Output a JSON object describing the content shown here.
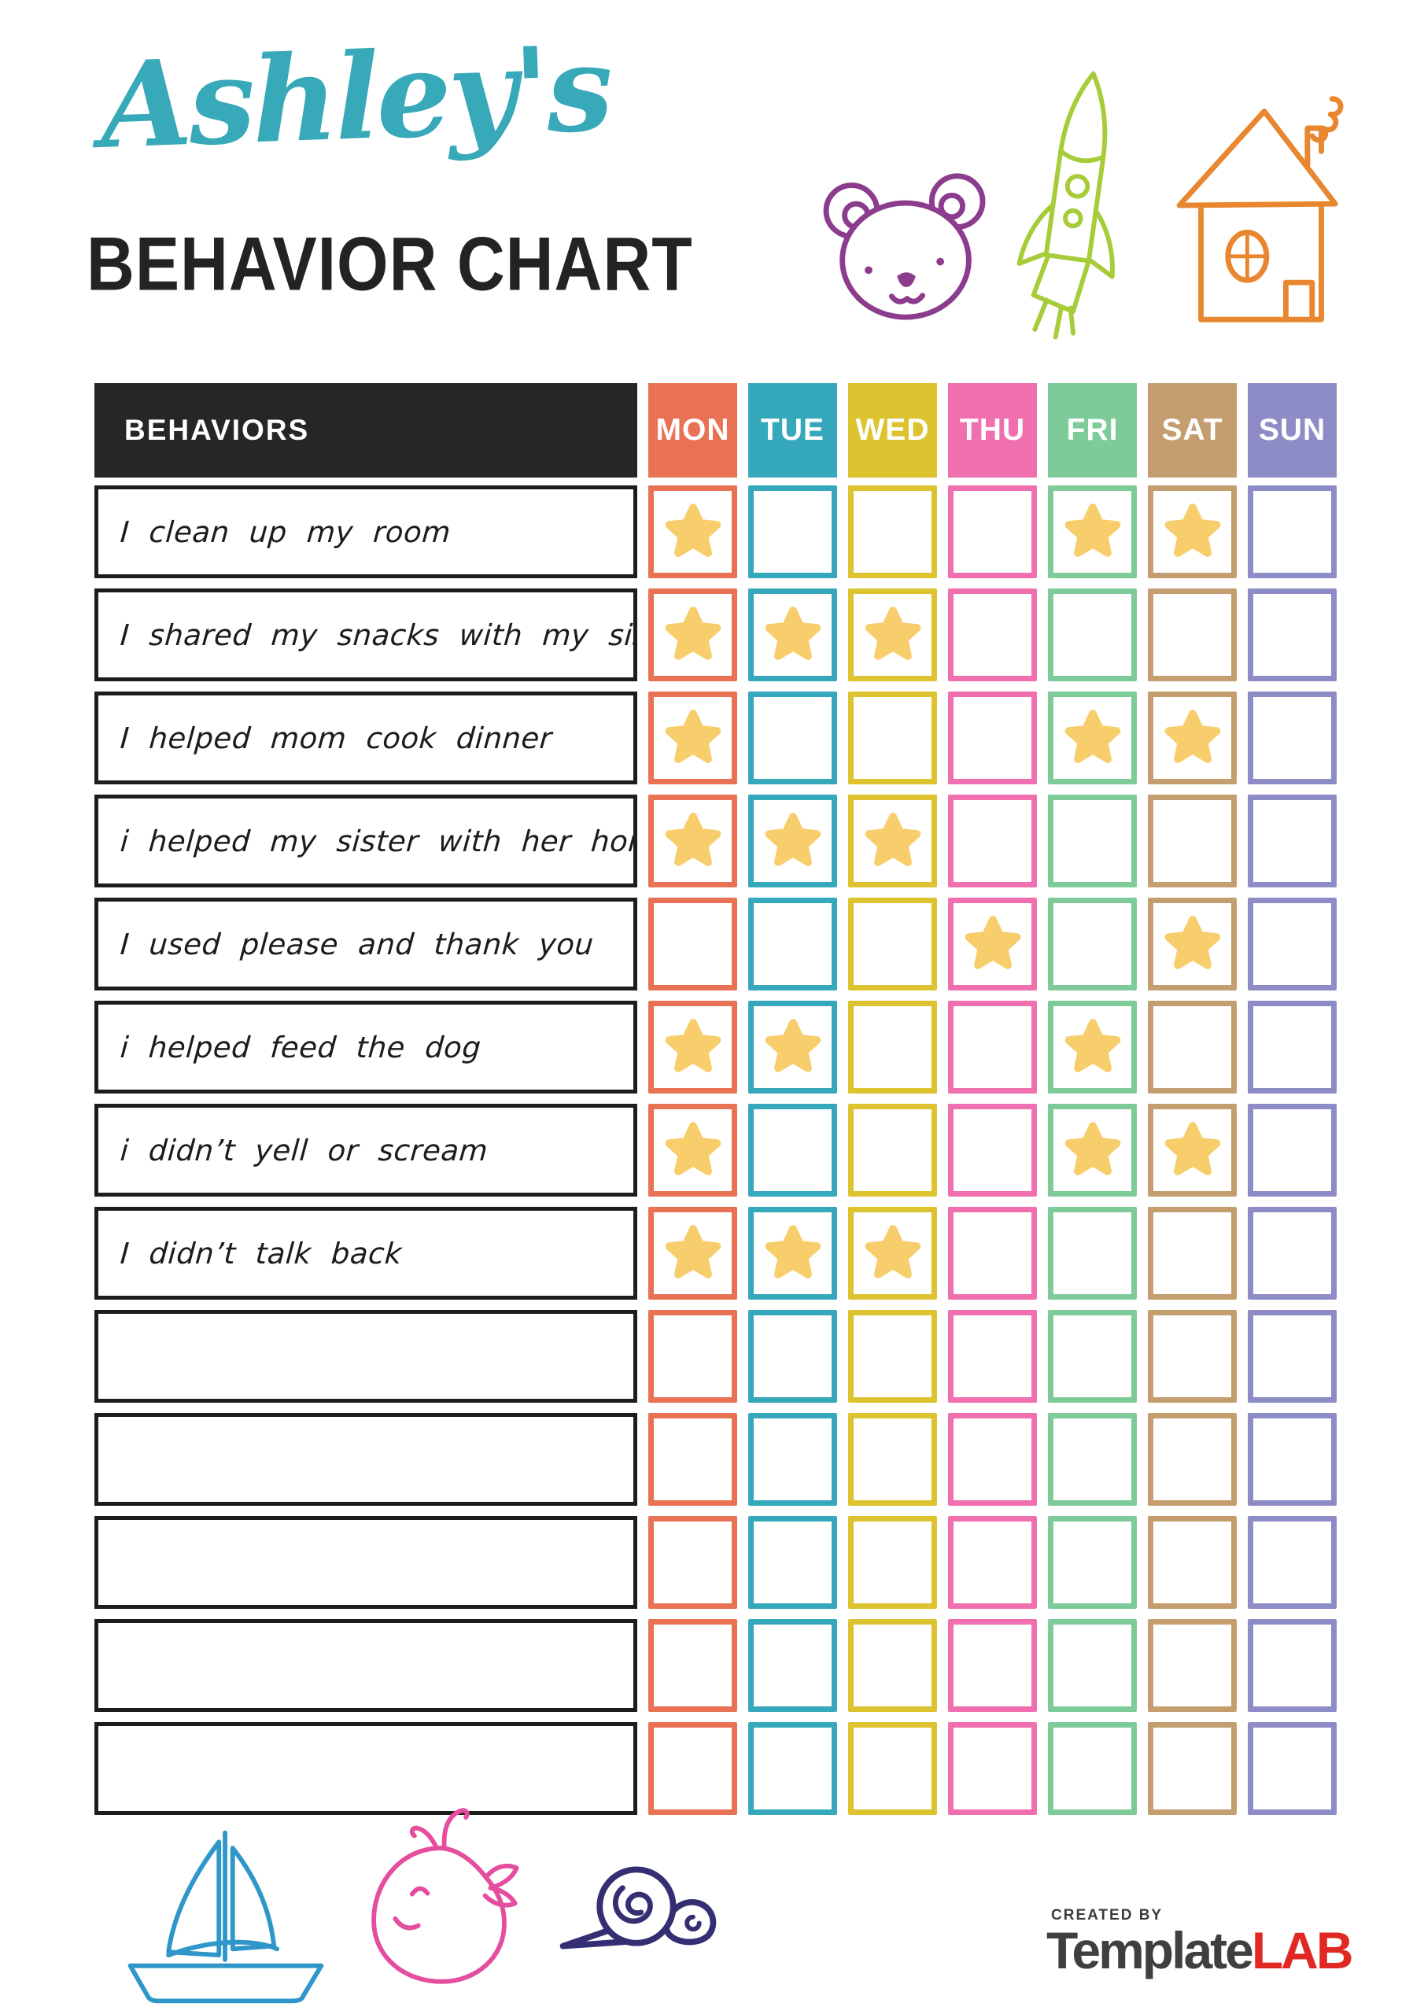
{
  "title": {
    "script": "Ashley's",
    "main": "BEHAVIOR CHART"
  },
  "colors": {
    "title_script": "#38A9B9",
    "title_main": "#232323",
    "table_header_bg": "#272525",
    "row_border": "#1D1D1B",
    "star": "#F7CE6B",
    "bear_doodle": "#8B3C8C",
    "rocket_doodle": "#A7CC39",
    "house_doodle": "#E8872F",
    "sailboat_doodle": "#2E96C8",
    "whale_doodle": "#E54D9E",
    "snail_doodle": "#332F72"
  },
  "table": {
    "behaviors_header": "BEHAVIORS",
    "star_glyph": "★",
    "days": [
      {
        "label": "MON",
        "color": "#E97254"
      },
      {
        "label": "TUE",
        "color": "#35A8BC"
      },
      {
        "label": "WED",
        "color": "#DCC32F"
      },
      {
        "label": "THU",
        "color": "#F06FAE"
      },
      {
        "label": "FRI",
        "color": "#7ECB99"
      },
      {
        "label": "SAT",
        "color": "#C49E6F"
      },
      {
        "label": "SUN",
        "color": "#8E8CC6"
      }
    ],
    "rows": [
      {
        "label": "I clean up my room",
        "stars": [
          1,
          0,
          0,
          0,
          1,
          1,
          0
        ]
      },
      {
        "label": "I shared my snacks with my sister",
        "stars": [
          1,
          1,
          1,
          0,
          0,
          0,
          0
        ]
      },
      {
        "label": "I helped mom cook dinner",
        "stars": [
          1,
          0,
          0,
          0,
          1,
          1,
          0
        ]
      },
      {
        "label": "i helped my sister with her homework",
        "stars": [
          1,
          1,
          1,
          0,
          0,
          0,
          0
        ]
      },
      {
        "label": "I used please and thank you",
        "stars": [
          0,
          0,
          0,
          1,
          0,
          1,
          0
        ]
      },
      {
        "label": "i helped feed the dog",
        "stars": [
          1,
          1,
          0,
          0,
          1,
          0,
          0
        ]
      },
      {
        "label": "i didn’t yell or scream",
        "stars": [
          1,
          0,
          0,
          0,
          1,
          1,
          0
        ]
      },
      {
        "label": "I didn’t talk back",
        "stars": [
          1,
          1,
          1,
          0,
          0,
          0,
          0
        ]
      },
      {
        "label": "",
        "stars": [
          0,
          0,
          0,
          0,
          0,
          0,
          0
        ]
      },
      {
        "label": "",
        "stars": [
          0,
          0,
          0,
          0,
          0,
          0,
          0
        ]
      },
      {
        "label": "",
        "stars": [
          0,
          0,
          0,
          0,
          0,
          0,
          0
        ]
      },
      {
        "label": "",
        "stars": [
          0,
          0,
          0,
          0,
          0,
          0,
          0
        ]
      },
      {
        "label": "",
        "stars": [
          0,
          0,
          0,
          0,
          0,
          0,
          0
        ]
      }
    ]
  },
  "footer": {
    "created_by": "CREATED BY",
    "brand_template": "Template",
    "brand_lab": "LAB"
  }
}
